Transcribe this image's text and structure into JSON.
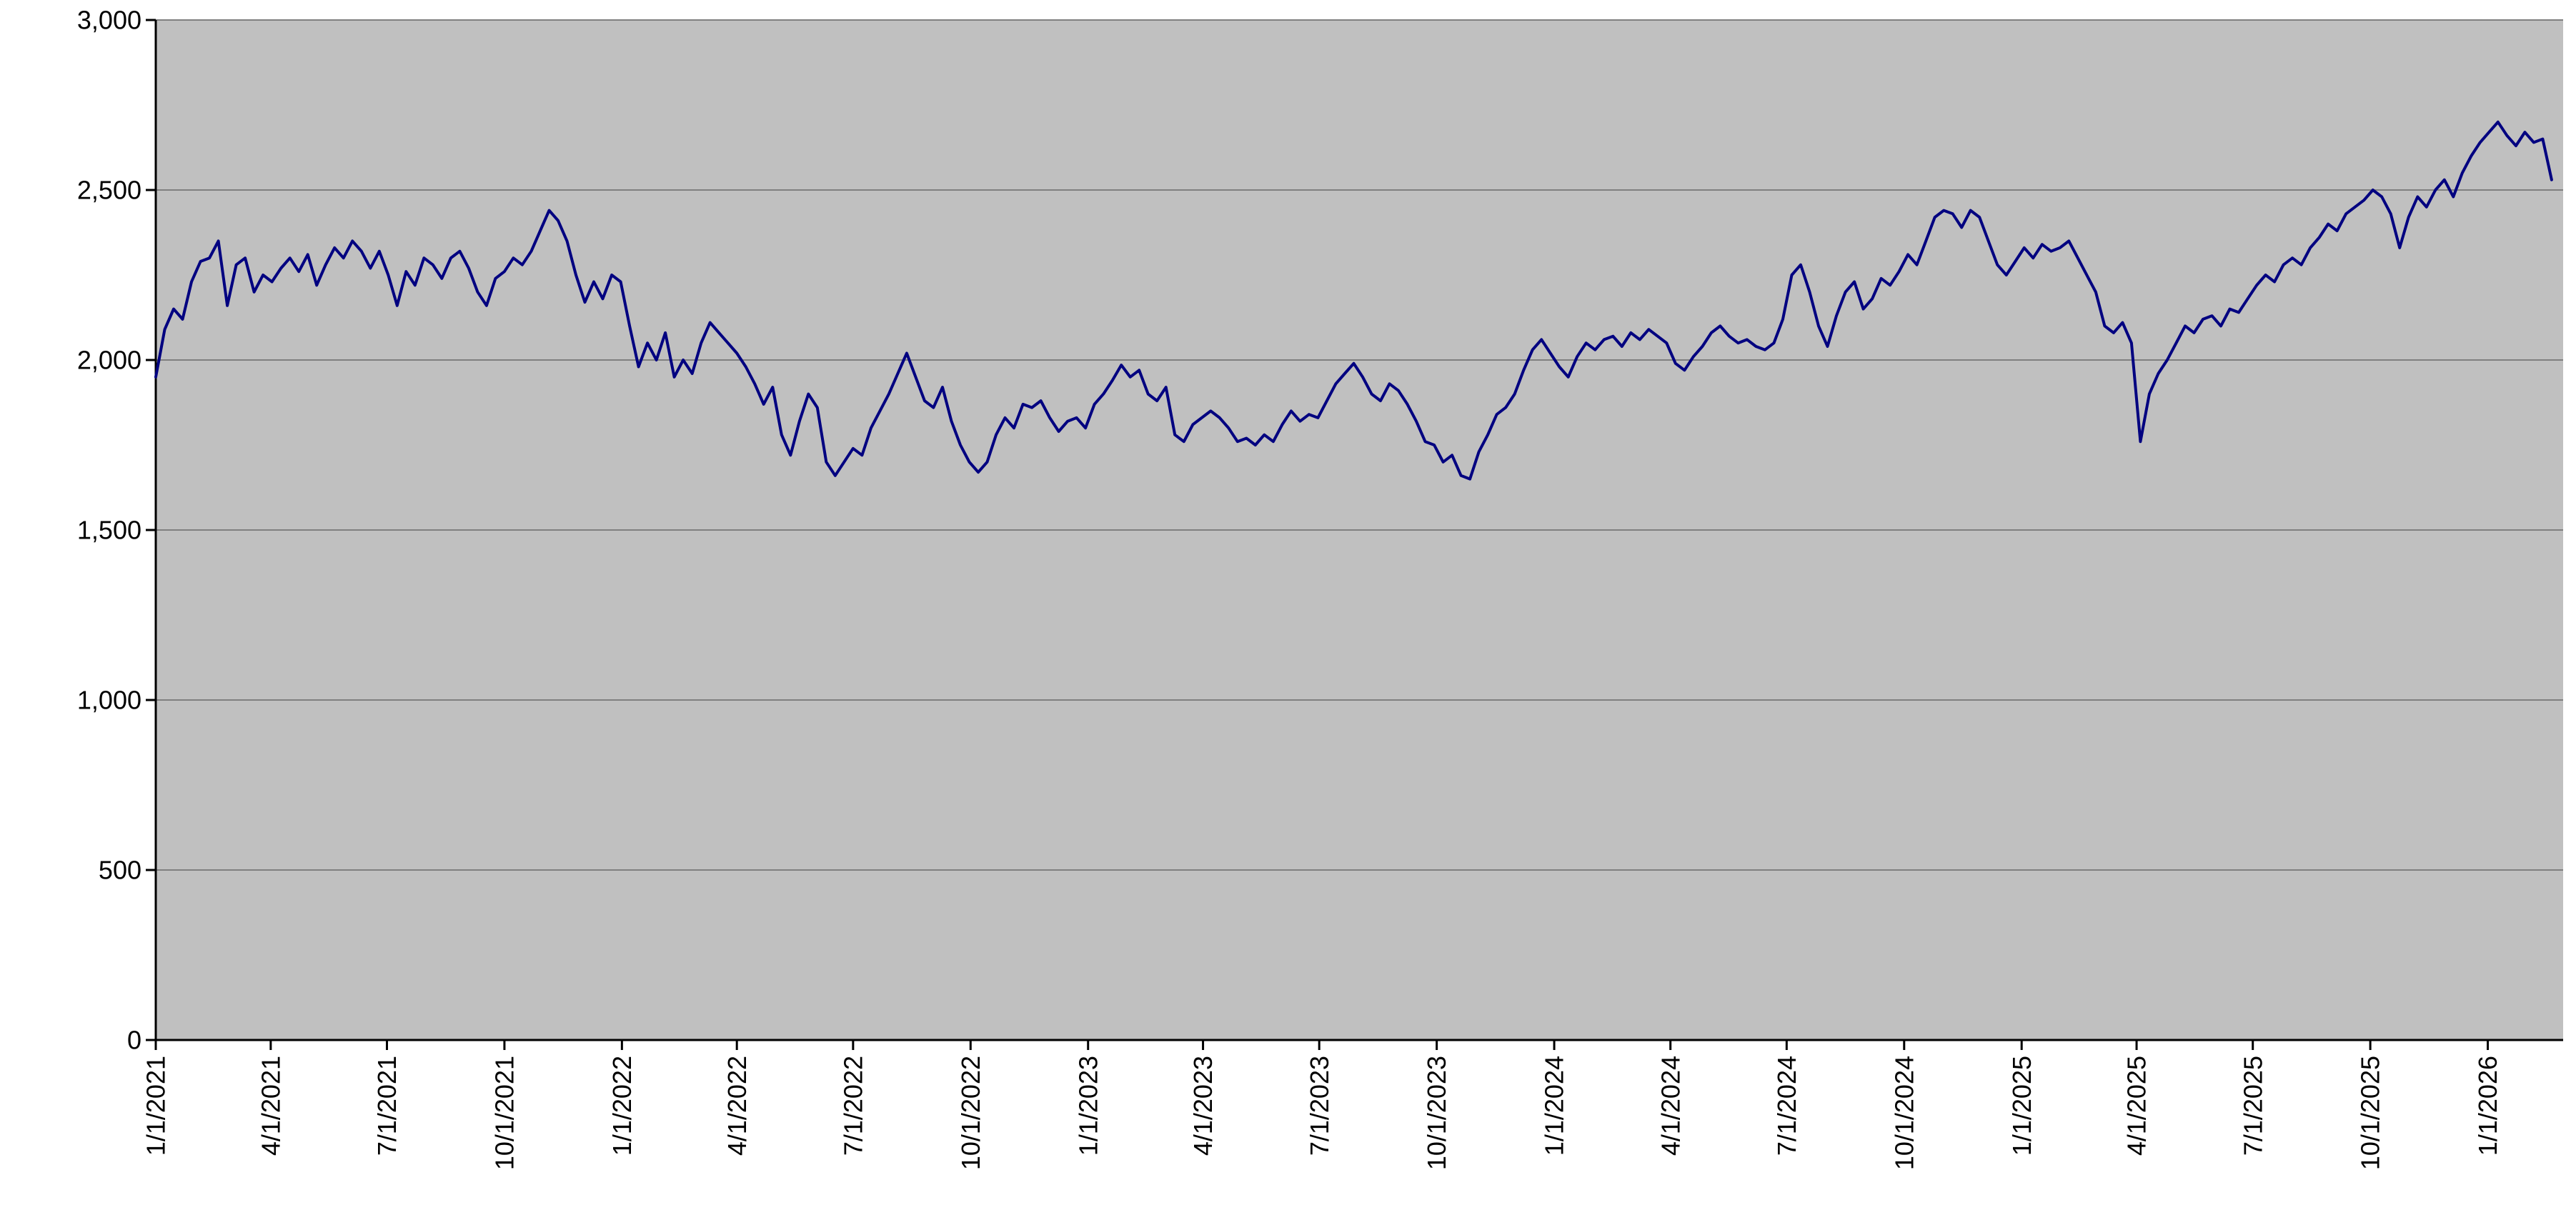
{
  "chart_data": {
    "type": "line",
    "title": "",
    "xlabel": "",
    "ylabel": "",
    "ylim": [
      0,
      3000
    ],
    "x_domain_start": "2021-01-01",
    "x_domain_end": "2026-03-01",
    "grid": true,
    "legend": "none",
    "plot_bg_color": "#c0c0c0",
    "grid_color": "#808080",
    "axis_color": "#000000",
    "y_ticks": [
      {
        "value": 3000,
        "label": "3,000"
      },
      {
        "value": 2500,
        "label": "2,500"
      },
      {
        "value": 2000,
        "label": "2,000"
      },
      {
        "value": 1500,
        "label": "1,500"
      },
      {
        "value": 1000,
        "label": "1,000"
      },
      {
        "value": 500,
        "label": "500"
      },
      {
        "value": 0,
        "label": "0"
      }
    ],
    "x_ticks": [
      "1/1/2021",
      "4/1/2021",
      "7/1/2021",
      "10/1/2021",
      "1/1/2022",
      "4/1/2022",
      "7/1/2022",
      "10/1/2022",
      "1/1/2023",
      "4/1/2023",
      "7/1/2023",
      "10/1/2023",
      "1/1/2024",
      "4/1/2024",
      "7/1/2024",
      "10/1/2024",
      "1/1/2025",
      "4/1/2025",
      "7/1/2025",
      "10/1/2025",
      "1/1/2026"
    ],
    "series": [
      {
        "name": "index-level",
        "color": "#000080",
        "start_date": "2021-01-01",
        "interval_days": 7,
        "values": [
          1950,
          2090,
          2150,
          2120,
          2230,
          2290,
          2300,
          2350,
          2160,
          2280,
          2300,
          2200,
          2250,
          2230,
          2270,
          2300,
          2260,
          2310,
          2220,
          2280,
          2330,
          2300,
          2350,
          2320,
          2270,
          2320,
          2250,
          2160,
          2260,
          2220,
          2300,
          2280,
          2240,
          2300,
          2320,
          2270,
          2200,
          2160,
          2240,
          2260,
          2300,
          2280,
          2320,
          2380,
          2440,
          2410,
          2350,
          2250,
          2170,
          2230,
          2180,
          2250,
          2230,
          2100,
          1980,
          2050,
          2000,
          2080,
          1950,
          2000,
          1960,
          2050,
          2110,
          2080,
          2050,
          2020,
          1980,
          1930,
          1870,
          1920,
          1780,
          1720,
          1820,
          1900,
          1860,
          1700,
          1660,
          1700,
          1740,
          1720,
          1800,
          1850,
          1900,
          1960,
          2020,
          1950,
          1880,
          1860,
          1920,
          1820,
          1750,
          1700,
          1670,
          1700,
          1780,
          1830,
          1800,
          1870,
          1860,
          1880,
          1830,
          1790,
          1820,
          1830,
          1800,
          1870,
          1900,
          1940,
          1985,
          1950,
          1970,
          1900,
          1880,
          1920,
          1780,
          1760,
          1810,
          1830,
          1850,
          1830,
          1800,
          1760,
          1770,
          1750,
          1780,
          1760,
          1810,
          1850,
          1820,
          1840,
          1830,
          1880,
          1930,
          1960,
          1990,
          1950,
          1900,
          1880,
          1930,
          1910,
          1870,
          1820,
          1760,
          1750,
          1700,
          1720,
          1660,
          1650,
          1730,
          1780,
          1840,
          1860,
          1900,
          1970,
          2030,
          2060,
          2020,
          1980,
          1950,
          2010,
          2050,
          2030,
          2060,
          2070,
          2040,
          2080,
          2060,
          2090,
          2070,
          2050,
          1990,
          1970,
          2010,
          2040,
          2080,
          2100,
          2070,
          2050,
          2060,
          2040,
          2030,
          2050,
          2120,
          2250,
          2280,
          2200,
          2100,
          2040,
          2130,
          2200,
          2230,
          2150,
          2180,
          2240,
          2220,
          2260,
          2310,
          2280,
          2350,
          2420,
          2440,
          2430,
          2390,
          2440,
          2420,
          2350,
          2280,
          2250,
          2290,
          2330,
          2300,
          2340,
          2320,
          2330,
          2350,
          2300,
          2250,
          2200,
          2100,
          2080,
          2110,
          2050,
          1760,
          1900,
          1960,
          2000,
          2050,
          2100,
          2080,
          2120,
          2130,
          2100,
          2150,
          2140,
          2180,
          2220,
          2250,
          2230,
          2280,
          2300,
          2280,
          2330,
          2360,
          2400,
          2380,
          2430,
          2450,
          2470,
          2500,
          2480,
          2430,
          2330,
          2420,
          2480,
          2450,
          2500,
          2530,
          2480,
          2550,
          2600,
          2640,
          2670,
          2700,
          2660,
          2630,
          2670,
          2640,
          2650,
          2530
        ]
      }
    ]
  }
}
